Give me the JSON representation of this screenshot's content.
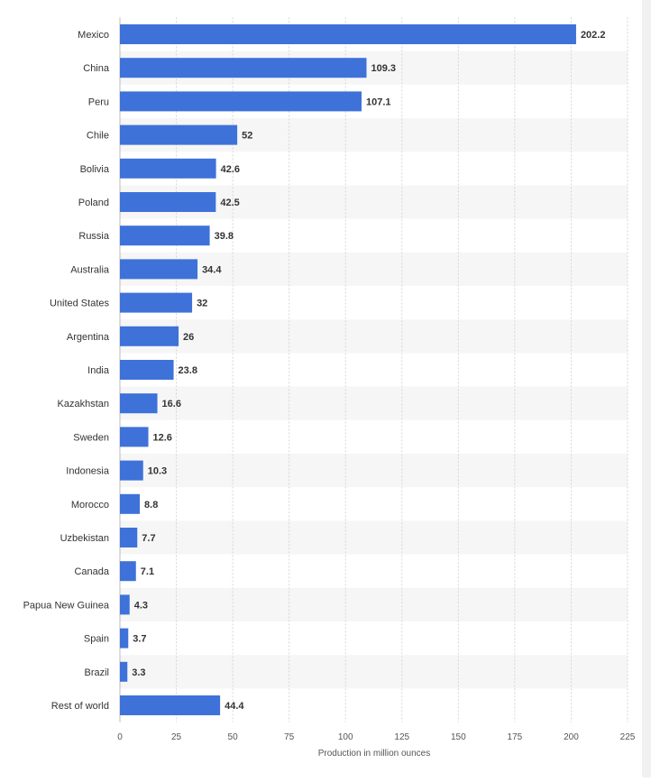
{
  "chart_data": {
    "type": "bar",
    "orientation": "horizontal",
    "categories": [
      "Mexico",
      "China",
      "Peru",
      "Chile",
      "Bolivia",
      "Poland",
      "Russia",
      "Australia",
      "United States",
      "Argentina",
      "India",
      "Kazakhstan",
      "Sweden",
      "Indonesia",
      "Morocco",
      "Uzbekistan",
      "Canada",
      "Papua New Guinea",
      "Spain",
      "Brazil",
      "Rest of world"
    ],
    "values": [
      202.2,
      109.3,
      107.1,
      52,
      42.6,
      42.5,
      39.8,
      34.4,
      32,
      26,
      23.8,
      16.6,
      12.6,
      10.3,
      8.8,
      7.7,
      7.1,
      4.3,
      3.7,
      3.3,
      44.4
    ],
    "value_labels": [
      "202.2",
      "109.3",
      "107.1",
      "52",
      "42.6",
      "42.5",
      "39.8",
      "34.4",
      "32",
      "26",
      "23.8",
      "16.6",
      "12.6",
      "10.3",
      "8.8",
      "7.7",
      "7.1",
      "4.3",
      "3.7",
      "3.3",
      "44.4"
    ],
    "xlabel": "Production in million ounces",
    "xlim": [
      0,
      225
    ],
    "xticks": [
      0,
      25,
      50,
      75,
      100,
      125,
      150,
      175,
      200,
      225
    ],
    "grid": true,
    "legend": "none",
    "colors": {
      "bar": "#3e72d9",
      "stripe": "#f6f6f6",
      "grid": "#d6d6d6"
    }
  }
}
